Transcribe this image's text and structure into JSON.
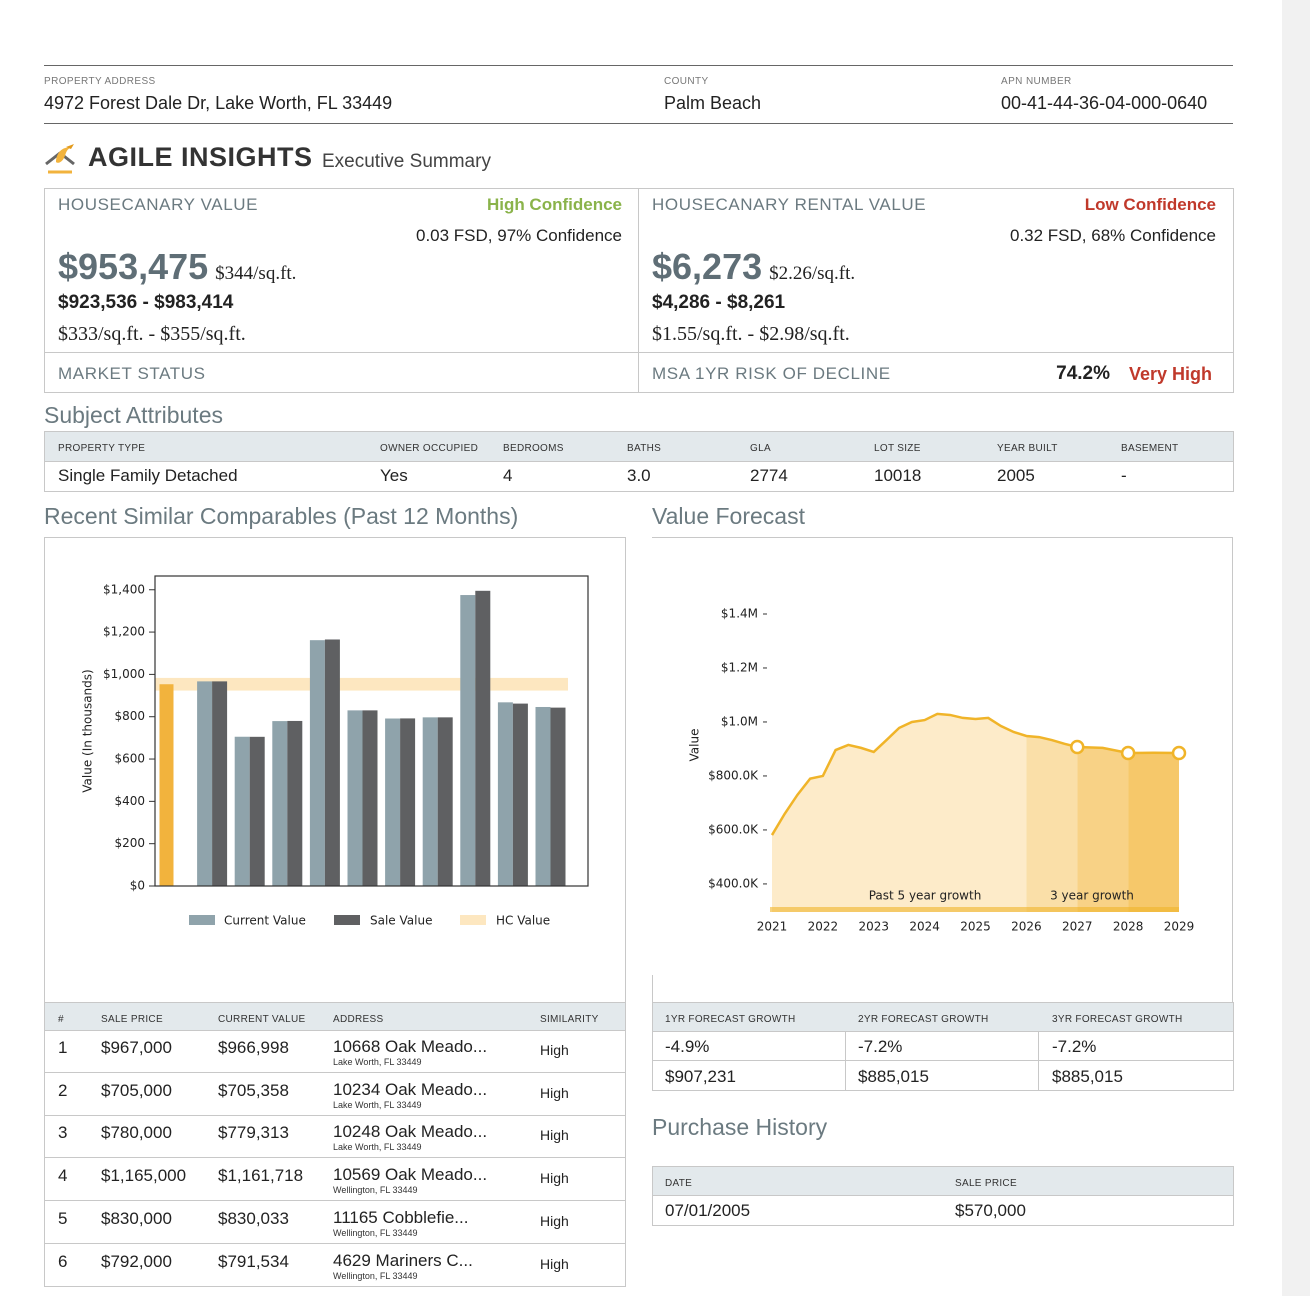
{
  "header": {
    "address_label": "PROPERTY ADDRESS",
    "address": "4972 Forest Dale Dr, Lake Worth, FL 33449",
    "county_label": "COUNTY",
    "county": "Palm Beach",
    "apn_label": "APN NUMBER",
    "apn": "00-41-44-36-04-000-0640"
  },
  "brand": {
    "name": "AGILE INSIGHTS",
    "subtitle": "Executive Summary"
  },
  "value": {
    "label": "HOUSECANARY VALUE",
    "confidence": "High Confidence",
    "fsd": "0.03 FSD, 97% Confidence",
    "price": "$953,475",
    "per_sqft": "$344/sq.ft.",
    "range": "$923,536 - $983,414",
    "range_sqft": "$333/sq.ft. - $355/sq.ft."
  },
  "rental": {
    "label": "HOUSECANARY RENTAL VALUE",
    "confidence": "Low Confidence",
    "fsd": "0.32 FSD, 68% Confidence",
    "price": "$6,273",
    "per_sqft": "$2.26/sq.ft.",
    "range": "$4,286 - $8,261",
    "range_sqft": "$1.55/sq.ft. - $2.98/sq.ft."
  },
  "market_status": {
    "label": "MARKET STATUS"
  },
  "risk": {
    "label": "MSA 1YR RISK OF DECLINE",
    "value": "74.2%",
    "level": "Very High"
  },
  "attributes": {
    "title": "Subject Attributes",
    "headers": [
      "PROPERTY TYPE",
      "OWNER OCCUPIED",
      "BEDROOMS",
      "BATHS",
      "GLA",
      "LOT SIZE",
      "YEAR BUILT",
      "BASEMENT"
    ],
    "values": [
      "Single Family Detached",
      "Yes",
      "4",
      "3.0",
      "2774",
      "10018",
      "2005",
      "-"
    ]
  },
  "comparables": {
    "title": "Recent Similar Comparables (Past 12 Months)",
    "headers": [
      "#",
      "SALE PRICE",
      "CURRENT VALUE",
      "ADDRESS",
      "SIMILARITY"
    ],
    "rows": [
      [
        "1",
        "$967,000",
        "$966,998",
        "10668 Oak Meado...",
        "Lake Worth, FL 33449",
        "High"
      ],
      [
        "2",
        "$705,000",
        "$705,358",
        "10234 Oak Meado...",
        "Lake Worth, FL 33449",
        "High"
      ],
      [
        "3",
        "$780,000",
        "$779,313",
        "10248 Oak Meado...",
        "Lake Worth, FL 33449",
        "High"
      ],
      [
        "4",
        "$1,165,000",
        "$1,161,718",
        "10569 Oak Meado...",
        "Wellington, FL 33449",
        "High"
      ],
      [
        "5",
        "$830,000",
        "$830,033",
        "11165 Cobblefie...",
        "Wellington, FL 33449",
        "High"
      ],
      [
        "6",
        "$792,000",
        "$791,534",
        "4629 Mariners C...",
        "Wellington, FL 33449",
        "High"
      ]
    ]
  },
  "forecast": {
    "title": "Value Forecast",
    "headers": [
      "1YR FORECAST GROWTH",
      "2YR FORECAST GROWTH",
      "3YR FORECAST GROWTH"
    ],
    "rows": [
      [
        "-4.9%",
        "-7.2%",
        "-7.2%"
      ],
      [
        "$907,231",
        "$885,015",
        "$885,015"
      ]
    ]
  },
  "purchase_history": {
    "title": "Purchase History",
    "headers": [
      "DATE",
      "SALE PRICE"
    ],
    "rows": [
      [
        "07/01/2005",
        "$570,000"
      ]
    ]
  },
  "chart_data": [
    {
      "type": "bar",
      "y_label": "Value (In thousands)",
      "categories": [
        null,
        null,
        null,
        null,
        null,
        null,
        null,
        null,
        null,
        null
      ],
      "subject": {
        "value": 953.475,
        "color": "#f2b33d"
      },
      "band": {
        "name": "HC Value",
        "low": 923.536,
        "high": 983.414,
        "color": "#fde7c0"
      },
      "series": [
        {
          "name": "Current Value",
          "color": "#8fa3ab",
          "values": [
            966.998,
            705.358,
            779.313,
            1161.718,
            830.033,
            791.534,
            797,
            1375,
            868,
            846
          ]
        },
        {
          "name": "Sale Value",
          "color": "#5f6062",
          "values": [
            967,
            705,
            780,
            1165,
            830,
            792,
            797,
            1395,
            862,
            843
          ]
        }
      ],
      "ylim": [
        0,
        1465
      ],
      "yticks": [
        {
          "value": 0,
          "label": "$0"
        },
        {
          "value": 200,
          "label": "$200"
        },
        {
          "value": 400,
          "label": "$400"
        },
        {
          "value": 600,
          "label": "$600"
        },
        {
          "value": 800,
          "label": "$800"
        },
        {
          "value": 1000,
          "label": "$1,000"
        },
        {
          "value": 1200,
          "label": "$1,200"
        },
        {
          "value": 1400,
          "label": "$1,400"
        }
      ]
    },
    {
      "type": "line",
      "y_label": "Value",
      "x": [
        2021,
        2021.25,
        2021.5,
        2021.75,
        2022,
        2022.25,
        2022.5,
        2022.75,
        2023,
        2023.25,
        2023.5,
        2023.75,
        2024,
        2024.25,
        2024.5,
        2024.75,
        2025,
        2025.25,
        2025.5,
        2025.75,
        2026,
        2026.25,
        2026.5,
        2026.75,
        2027,
        2027.5,
        2028,
        2028.5,
        2029
      ],
      "series": [
        {
          "color": "#f0b429",
          "values": [
            581000,
            660000,
            730000,
            790000,
            800000,
            896000,
            915000,
            904000,
            889000,
            933000,
            978000,
            1000000,
            1007000,
            1030000,
            1026000,
            1015000,
            1011000,
            1015000,
            985000,
            963000,
            948000,
            944000,
            933000,
            919000,
            907231,
            904000,
            885015,
            886000,
            885015
          ]
        }
      ],
      "marker_x": [
        2027,
        2028,
        2029
      ],
      "regions": [
        {
          "from": 2021,
          "to": 2026,
          "color": "#fdebc9"
        },
        {
          "from": 2026,
          "to": 2027,
          "color": "#fadfa8"
        },
        {
          "from": 2027,
          "to": 2028,
          "color": "#f8d286"
        },
        {
          "from": 2028,
          "to": 2029,
          "color": "#f6c86a"
        }
      ],
      "annotations": [
        "Past 5 year growth",
        "3 year growth"
      ],
      "xlim": [
        2021,
        2029
      ],
      "xticks": [
        2021,
        2022,
        2023,
        2024,
        2025,
        2026,
        2027,
        2028,
        2029
      ],
      "ylim": [
        296000,
        1600000
      ],
      "yticks": [
        {
          "value": 400000,
          "label": "$400.0K"
        },
        {
          "value": 600000,
          "label": "$600.0K"
        },
        {
          "value": 800000,
          "label": "$800.0K"
        },
        {
          "value": 1000000,
          "label": "$1.0M"
        },
        {
          "value": 1200000,
          "label": "$1.2M"
        },
        {
          "value": 1400000,
          "label": "$1.4M"
        }
      ]
    }
  ]
}
